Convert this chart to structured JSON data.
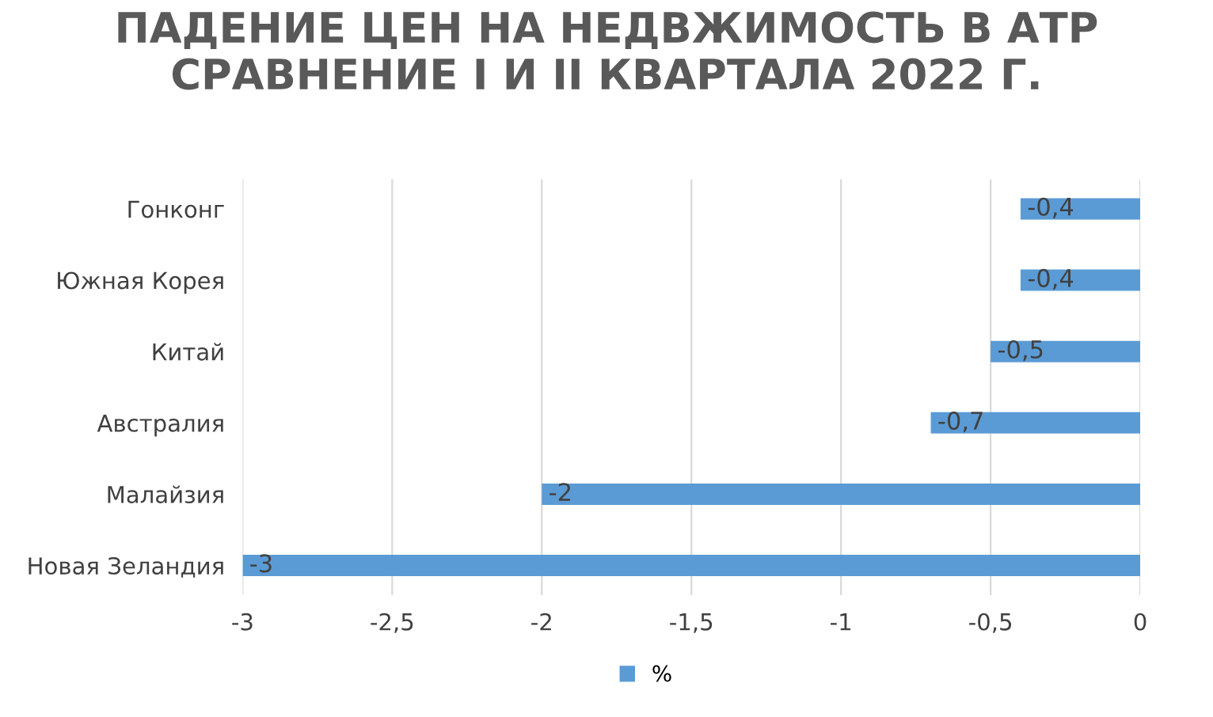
{
  "chart_data": {
    "type": "bar",
    "orientation": "horizontal",
    "title": "ПАДЕНИЕ ЦЕН НА НЕДВЖИМОСТЬ В АТР\nСРАВНЕНИЕ I И II КВАРТАЛА 2022 Г.",
    "categories": [
      "Гонконг",
      "Южная Корея",
      "Китай",
      "Австралия",
      "Малайзия",
      "Новая Зеландия"
    ],
    "series": [
      {
        "name": "%",
        "color": "#5b9bd5",
        "values": [
          -0.4,
          -0.4,
          -0.5,
          -0.7,
          -2,
          -3
        ],
        "value_labels": [
          "-0,4",
          "-0,4",
          "-0,5",
          "-0,7",
          "-2",
          "-3"
        ]
      }
    ],
    "xlim": [
      -3,
      0
    ],
    "xticks": [
      {
        "value": -3,
        "label": "-3"
      },
      {
        "value": -2.5,
        "label": "-2,5"
      },
      {
        "value": -2,
        "label": "-2"
      },
      {
        "value": -1.5,
        "label": "-1,5"
      },
      {
        "value": -1,
        "label": "-1"
      },
      {
        "value": -0.5,
        "label": "-0,5"
      },
      {
        "value": 0,
        "label": "0"
      }
    ],
    "grid": "x",
    "legend": "bottom"
  }
}
